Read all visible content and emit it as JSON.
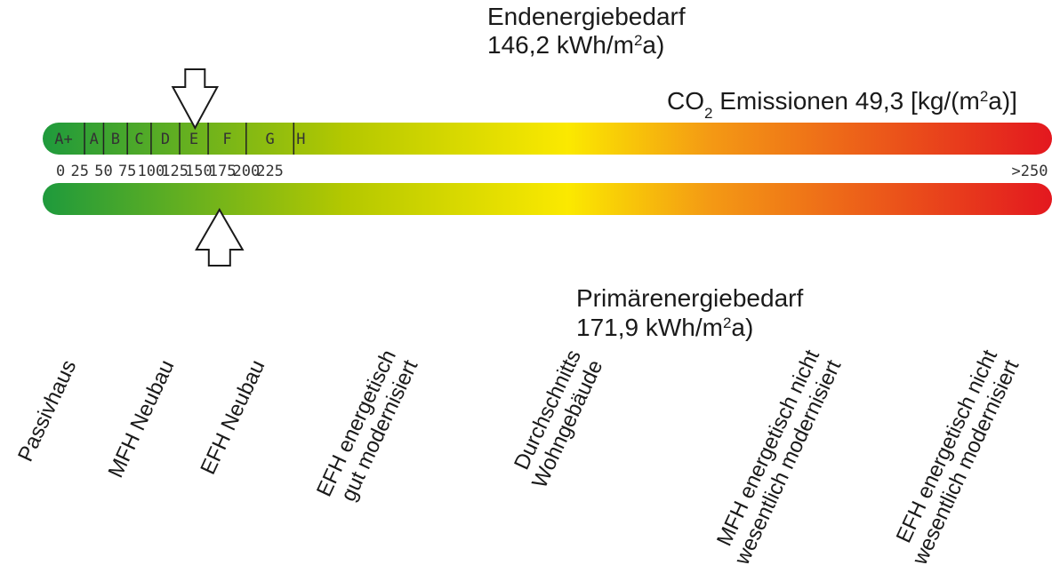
{
  "chart_data": {
    "type": "energy-scale",
    "unit": "kWh/m²a",
    "xlim": [
      0,
      250
    ],
    "tick_labels": [
      "0",
      "25",
      "50",
      "75",
      "100",
      "125",
      "150",
      "175",
      "200",
      "225",
      ">250"
    ],
    "tick_values": [
      0,
      25,
      50,
      75,
      100,
      125,
      150,
      175,
      200,
      225,
      250
    ],
    "classes": [
      {
        "label": "A+",
        "from": 0,
        "to": 30
      },
      {
        "label": "A",
        "from": 30,
        "to": 50
      },
      {
        "label": "B",
        "from": 50,
        "to": 75
      },
      {
        "label": "C",
        "from": 75,
        "to": 100
      },
      {
        "label": "D",
        "from": 100,
        "to": 130
      },
      {
        "label": "E",
        "from": 130,
        "to": 160
      },
      {
        "label": "F",
        "from": 160,
        "to": 200
      },
      {
        "label": "G",
        "from": 200,
        "to": 250
      },
      {
        "label": "H",
        "from": 250,
        "to": 265
      }
    ],
    "gradient_colors": [
      "#1e9a3c",
      "#b4c800",
      "#fbe900",
      "#f49a14",
      "#e3181f"
    ],
    "markers": [
      {
        "key": "end",
        "name": "Endenergiebedarf",
        "value_text": "146,2 kWh/m",
        "value_sup": "2",
        "value_tail": "a)",
        "value": 146.2,
        "direction": "down"
      },
      {
        "key": "primary",
        "name": "Primärenergiebedarf",
        "value_text": "171,9 kWh/m",
        "value_sup": "2",
        "value_tail": "a)",
        "value": 171.9,
        "direction": "up"
      }
    ],
    "co2": {
      "prefix": "CO",
      "sub": "2",
      "mid": " Emissionen 49,3 [kg/(m",
      "sup": "2",
      "tail": "a)]"
    },
    "references": [
      {
        "value": 15,
        "lines": [
          "Passivhaus"
        ]
      },
      {
        "value": 40,
        "lines": [
          "MFH Neubau"
        ]
      },
      {
        "value": 60,
        "lines": [
          "EFH Neubau"
        ]
      },
      {
        "value": 85,
        "lines": [
          "EFH energetisch",
          "gut modernisiert"
        ]
      },
      {
        "value": 140,
        "lines": [
          "Durchschnitts",
          "Wohngebäude"
        ]
      },
      {
        "value": 190,
        "lines": [
          "MFH energetisch nicht",
          "wesentlich modernisiert"
        ]
      },
      {
        "value": 237,
        "lines": [
          "EFH energetisch nicht",
          "wesentlich modernisiert"
        ]
      }
    ]
  }
}
